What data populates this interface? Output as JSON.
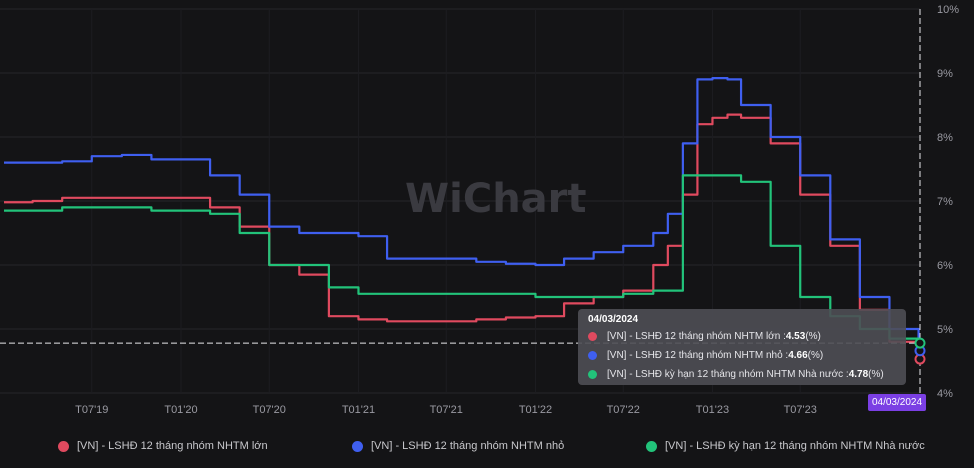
{
  "chart_data": {
    "type": "line",
    "x": [
      "2019-01",
      "2019-03",
      "2019-05",
      "2019-07",
      "2019-09",
      "2019-11",
      "2020-01",
      "2020-03",
      "2020-05",
      "2020-07",
      "2020-09",
      "2020-11",
      "2021-01",
      "2021-03",
      "2021-05",
      "2021-07",
      "2021-09",
      "2021-11",
      "2022-01",
      "2022-03",
      "2022-05",
      "2022-07",
      "2022-09",
      "2022-10",
      "2022-11",
      "2022-12",
      "2023-01",
      "2023-02",
      "2023-03",
      "2023-05",
      "2023-07",
      "2023-09",
      "2023-11",
      "2024-01",
      "2024-03"
    ],
    "series": [
      {
        "name": "[VN] - LSHĐ 12 tháng nhóm NHTM lớn",
        "color": "#e04a5f",
        "values": [
          6.98,
          7.0,
          7.05,
          7.05,
          7.05,
          7.05,
          7.05,
          6.9,
          6.6,
          6.0,
          5.85,
          5.2,
          5.15,
          5.12,
          5.12,
          5.12,
          5.15,
          5.18,
          5.2,
          5.4,
          5.5,
          5.6,
          6.0,
          6.3,
          7.1,
          8.2,
          8.3,
          8.35,
          8.3,
          7.9,
          7.1,
          6.3,
          5.3,
          4.8,
          4.53
        ]
      },
      {
        "name": "[VN] - LSHĐ 12 tháng nhóm NHTM nhỏ",
        "color": "#3f5ff0",
        "values": [
          7.6,
          7.6,
          7.62,
          7.7,
          7.72,
          7.65,
          7.65,
          7.4,
          7.1,
          6.6,
          6.5,
          6.5,
          6.45,
          6.1,
          6.1,
          6.1,
          6.05,
          6.02,
          6.0,
          6.1,
          6.2,
          6.3,
          6.5,
          6.8,
          7.9,
          8.9,
          8.92,
          8.9,
          8.5,
          8.0,
          7.4,
          6.4,
          5.5,
          5.0,
          4.66
        ]
      },
      {
        "name": "[VN] - LSHĐ kỳ hạn 12 tháng nhóm NHTM Nhà nước",
        "color": "#22c37a",
        "values": [
          6.85,
          6.85,
          6.9,
          6.9,
          6.9,
          6.85,
          6.85,
          6.8,
          6.5,
          6.0,
          6.0,
          5.65,
          5.55,
          5.55,
          5.55,
          5.55,
          5.55,
          5.55,
          5.5,
          5.5,
          5.5,
          5.55,
          5.6,
          5.6,
          7.4,
          7.4,
          7.4,
          7.4,
          7.3,
          6.3,
          5.5,
          5.2,
          5.0,
          4.85,
          4.78
        ]
      }
    ],
    "x_ticks": [
      "T07'19",
      "T01'20",
      "T07'20",
      "T01'21",
      "T07'21",
      "T01'22",
      "T07'22",
      "T01'23",
      "T07'23"
    ],
    "y_ticks": [
      "4%",
      "5%",
      "6%",
      "7%",
      "8%",
      "9%",
      "10%"
    ],
    "ylim": [
      4,
      10
    ],
    "grid": true,
    "legend_position": "bottom",
    "tooltip": {
      "date": "04/03/2024",
      "rows": [
        {
          "label": "[VN] - LSHĐ 12 tháng nhóm NHTM lớn : ",
          "value": "4.53",
          "unit": " (%)",
          "color": "#e04a5f"
        },
        {
          "label": "[VN] - LSHĐ 12 tháng nhóm NHTM nhỏ : ",
          "value": "4.66",
          "unit": " (%)",
          "color": "#3f5ff0"
        },
        {
          "label": "[VN] - LSHĐ kỳ hạn 12 tháng nhóm NHTM Nhà nước : ",
          "value": "4.78",
          "unit": " (%)",
          "color": "#22c37a"
        }
      ]
    },
    "crosshair_label": "04/03/2024",
    "watermark": "WiChart"
  }
}
